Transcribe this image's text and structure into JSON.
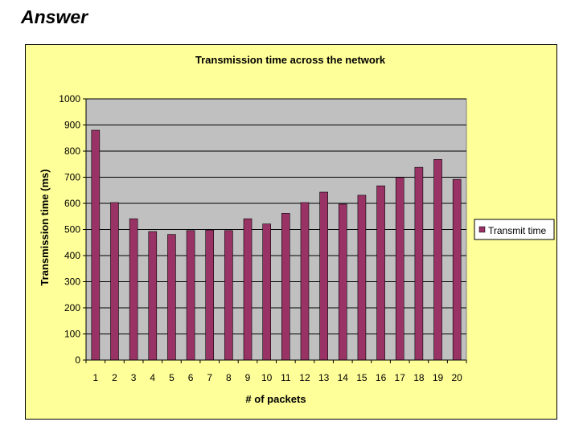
{
  "slide": {
    "title": "Answer"
  },
  "colors": {
    "bar": "#993366",
    "plot_background": "#c0c0c0",
    "chart_background": "#ffff99"
  },
  "chart_data": {
    "type": "bar",
    "title": "Transmission time across the network",
    "xlabel": "# of packets",
    "ylabel": "Transmission time (ms)",
    "categories": [
      "1",
      "2",
      "3",
      "4",
      "5",
      "6",
      "7",
      "8",
      "9",
      "10",
      "11",
      "12",
      "13",
      "14",
      "15",
      "16",
      "17",
      "18",
      "19",
      "20"
    ],
    "series": [
      {
        "name": "Transmit time",
        "values": [
          880,
          603,
          541,
          492,
          481,
          496,
          498,
          496,
          541,
          521,
          562,
          603,
          643,
          597,
          631,
          667,
          699,
          738,
          768,
          692
        ]
      }
    ],
    "ylim": [
      0,
      1000
    ],
    "yticks": [
      "0",
      "100",
      "200",
      "300",
      "400",
      "500",
      "600",
      "700",
      "800",
      "900",
      "1000"
    ],
    "grid": true,
    "legend": "right"
  }
}
